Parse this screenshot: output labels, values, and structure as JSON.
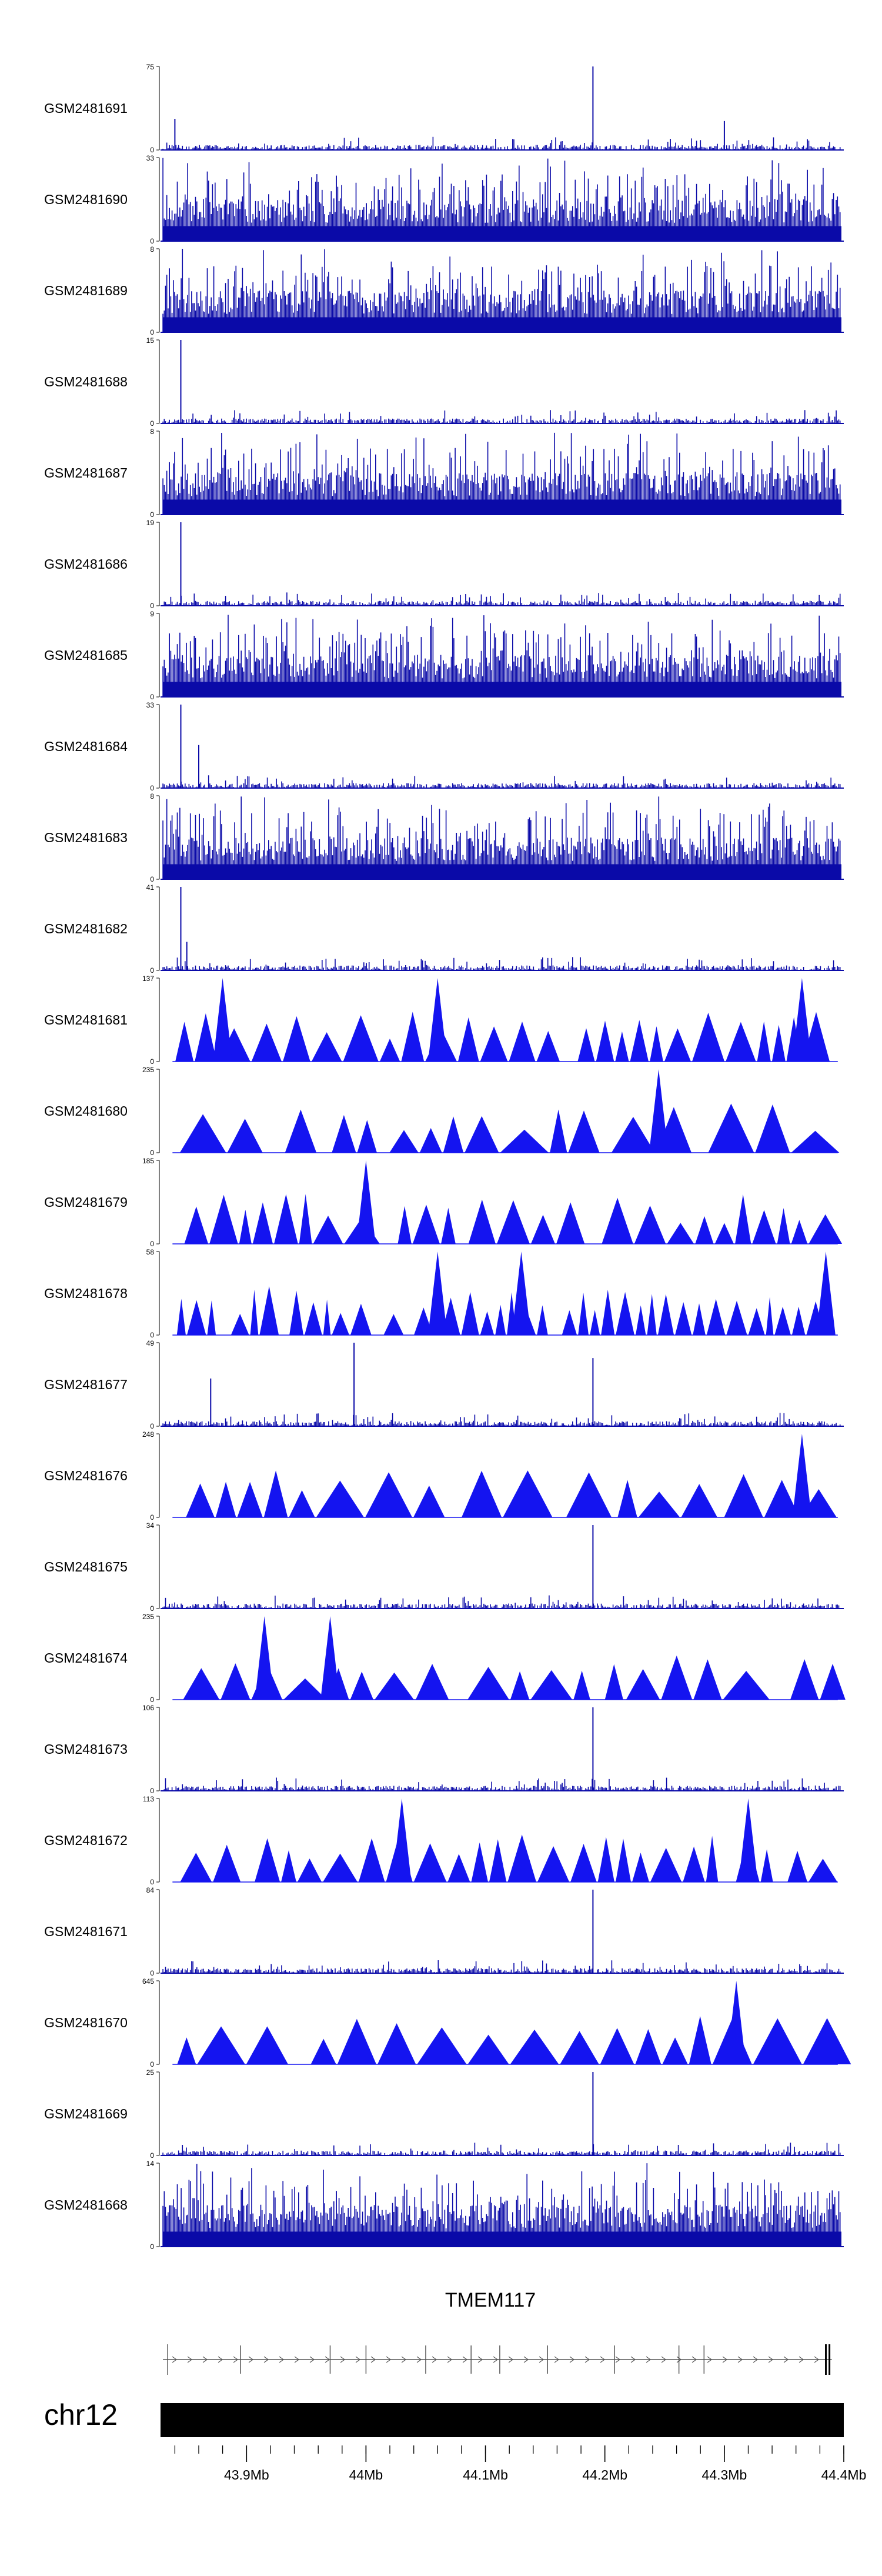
{
  "chart_data": {
    "type": "area",
    "tracks": [
      {
        "label": "GSM2481691",
        "ymax": "75",
        "ymin": "0",
        "style": "bars",
        "peaks": [
          [
            44.19,
            75
          ],
          [
            44.3,
            26
          ],
          [
            43.84,
            28
          ]
        ]
      },
      {
        "label": "GSM2481690",
        "ymax": "33",
        "ymin": "0",
        "style": "dense"
      },
      {
        "label": "GSM2481689",
        "ymax": "8",
        "ymin": "0",
        "style": "dense"
      },
      {
        "label": "GSM2481688",
        "ymax": "15",
        "ymin": "0",
        "style": "bars",
        "peaks": [
          [
            43.845,
            15
          ]
        ]
      },
      {
        "label": "GSM2481687",
        "ymax": "8",
        "ymin": "0",
        "style": "dense"
      },
      {
        "label": "GSM2481686",
        "ymax": "19",
        "ymin": "0",
        "style": "bars",
        "peaks": [
          [
            43.845,
            19
          ]
        ]
      },
      {
        "label": "GSM2481685",
        "ymax": "9",
        "ymin": "0",
        "style": "dense"
      },
      {
        "label": "GSM2481684",
        "ymax": "33",
        "ymin": "0",
        "style": "bars",
        "peaks": [
          [
            43.845,
            33
          ],
          [
            43.86,
            17
          ]
        ]
      },
      {
        "label": "GSM2481683",
        "ymax": "8",
        "ymin": "0",
        "style": "dense"
      },
      {
        "label": "GSM2481682",
        "ymax": "41",
        "ymin": "0",
        "style": "bars",
        "peaks": [
          [
            43.845,
            41
          ],
          [
            43.85,
            14
          ]
        ]
      },
      {
        "label": "GSM2481681",
        "ymax": "137",
        "ymin": "0",
        "style": "triangles",
        "peaks": [
          [
            43.88,
            137
          ],
          [
            44.365,
            137
          ],
          [
            44.06,
            137
          ]
        ]
      },
      {
        "label": "GSM2481680",
        "ymax": "235",
        "ymin": "0",
        "style": "triangles",
        "peaks": [
          [
            44.245,
            235
          ]
        ]
      },
      {
        "label": "GSM2481679",
        "ymax": "185",
        "ymin": "0",
        "style": "triangles",
        "peaks": [
          [
            44.0,
            185
          ]
        ]
      },
      {
        "label": "GSM2481678",
        "ymax": "58",
        "ymin": "0",
        "style": "triangles",
        "peaks": [
          [
            44.06,
            58
          ],
          [
            44.13,
            58
          ],
          [
            44.385,
            58
          ]
        ]
      },
      {
        "label": "GSM2481677",
        "ymax": "49",
        "ymin": "0",
        "style": "bars",
        "peaks": [
          [
            43.99,
            49
          ],
          [
            44.19,
            40
          ],
          [
            43.87,
            28
          ]
        ]
      },
      {
        "label": "GSM2481676",
        "ymax": "248",
        "ymin": "0",
        "style": "triangles",
        "peaks": [
          [
            44.365,
            248
          ]
        ]
      },
      {
        "label": "GSM2481675",
        "ymax": "34",
        "ymin": "0",
        "style": "bars",
        "peaks": [
          [
            44.19,
            34
          ]
        ]
      },
      {
        "label": "GSM2481674",
        "ymax": "235",
        "ymin": "0",
        "style": "triangles",
        "peaks": [
          [
            43.915,
            235
          ],
          [
            43.97,
            235
          ]
        ]
      },
      {
        "label": "GSM2481673",
        "ymax": "106",
        "ymin": "0",
        "style": "bars",
        "peaks": [
          [
            44.19,
            106
          ]
        ]
      },
      {
        "label": "GSM2481672",
        "ymax": "113",
        "ymin": "0",
        "style": "triangles",
        "peaks": [
          [
            44.32,
            113
          ],
          [
            44.03,
            113
          ]
        ]
      },
      {
        "label": "GSM2481671",
        "ymax": "84",
        "ymin": "0",
        "style": "bars",
        "peaks": [
          [
            44.19,
            84
          ]
        ]
      },
      {
        "label": "GSM2481670",
        "ymax": "645",
        "ymin": "0",
        "style": "triangles",
        "peaks": [
          [
            44.31,
            645
          ]
        ]
      },
      {
        "label": "GSM2481669",
        "ymax": "25",
        "ymin": "0",
        "style": "bars",
        "peaks": [
          [
            44.19,
            25
          ]
        ]
      },
      {
        "label": "GSM2481668",
        "ymax": "14",
        "ymin": "0",
        "style": "dense"
      }
    ],
    "gene": {
      "name": "TMEM117",
      "start": 43.83,
      "end": 44.39,
      "strand": "+"
    },
    "chromosome": "chr12",
    "xaxis": {
      "unit": "Mb",
      "ticks": [
        43.9,
        44.0,
        44.1,
        44.2,
        44.3,
        44.4
      ],
      "tick_labels": [
        "43.9Mb",
        "44Mb",
        "44.1Mb",
        "44.2Mb",
        "44.3Mb",
        "44.4Mb"
      ]
    },
    "xlim": [
      43.828,
      44.4
    ],
    "colors": {
      "signal": "#0a0aa8",
      "triangle": "#1414f0",
      "ideogram": "#000000",
      "gene": "#555555"
    }
  }
}
